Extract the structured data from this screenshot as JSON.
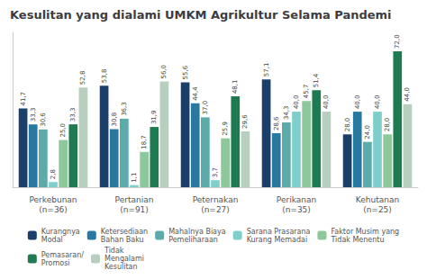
{
  "chart_data": {
    "type": "bar",
    "title": "Kesulitan yang dialami UMKM Agrikultur Selama Pandemi",
    "categories": [
      "Perkebunan\n(n=36)",
      "Pertanian\n(n=91)",
      "Peternakan\n(n=27)",
      "Perikanan\n(n=35)",
      "Kehutanan\n(n=25)"
    ],
    "series": [
      {
        "name": "Kurangnya\nModal",
        "color": "#1b3f6b",
        "values": [
          41.7,
          53.8,
          55.6,
          57.1,
          28.0
        ],
        "value_labels": [
          "41,7",
          "53,8",
          "55,6",
          "57,1",
          "28,0"
        ]
      },
      {
        "name": "Ketersediaan\nBahan Baku",
        "color": "#2878a0",
        "values": [
          33.3,
          30.8,
          44.4,
          28.6,
          40.0
        ],
        "value_labels": [
          "33,3",
          "30,8",
          "44,4",
          "28,6",
          "40,0"
        ]
      },
      {
        "name": "Mahalnya Biaya\nPemeliharaan",
        "color": "#5aabaa",
        "values": [
          30.6,
          36.3,
          37.0,
          34.3,
          24.0
        ],
        "value_labels": [
          "30,6",
          "36,3",
          "37,0",
          "34,3",
          "24,0"
        ]
      },
      {
        "name": "Sarana Prasarana\nKurang Memadai",
        "color": "#7ecfcc",
        "values": [
          2.8,
          1.1,
          3.7,
          40.0,
          40.0
        ],
        "value_labels": [
          "2,8",
          "1,1",
          "3,7",
          "40,0",
          "40,0"
        ]
      },
      {
        "name": "Faktor Musim yang\nTidak Menentu",
        "color": "#8dc89a",
        "values": [
          25.0,
          18.7,
          25.9,
          45.7,
          28.0
        ],
        "value_labels": [
          "25,0",
          "18,7",
          "25,9",
          "45,7",
          "28,0"
        ]
      },
      {
        "name": "Pemasaran/\nPromosi",
        "color": "#1e7a50",
        "values": [
          33.3,
          31.9,
          48.1,
          51.4,
          72.0
        ],
        "value_labels": [
          "33,3",
          "31,9",
          "48,1",
          "51,4",
          "72,0"
        ]
      },
      {
        "name": "Tidak\nMengalami\nKesulitan",
        "color": "#b8cfc0",
        "values": [
          52.8,
          56.0,
          29.6,
          40.0,
          44.0
        ],
        "value_labels": [
          "52,8",
          "56,0",
          "29,6",
          "40,0",
          "44,0"
        ]
      }
    ],
    "ylim": [
      0,
      82
    ],
    "grid": false,
    "legend": "bottom",
    "data_labels": true,
    "tick_labels": "x"
  }
}
